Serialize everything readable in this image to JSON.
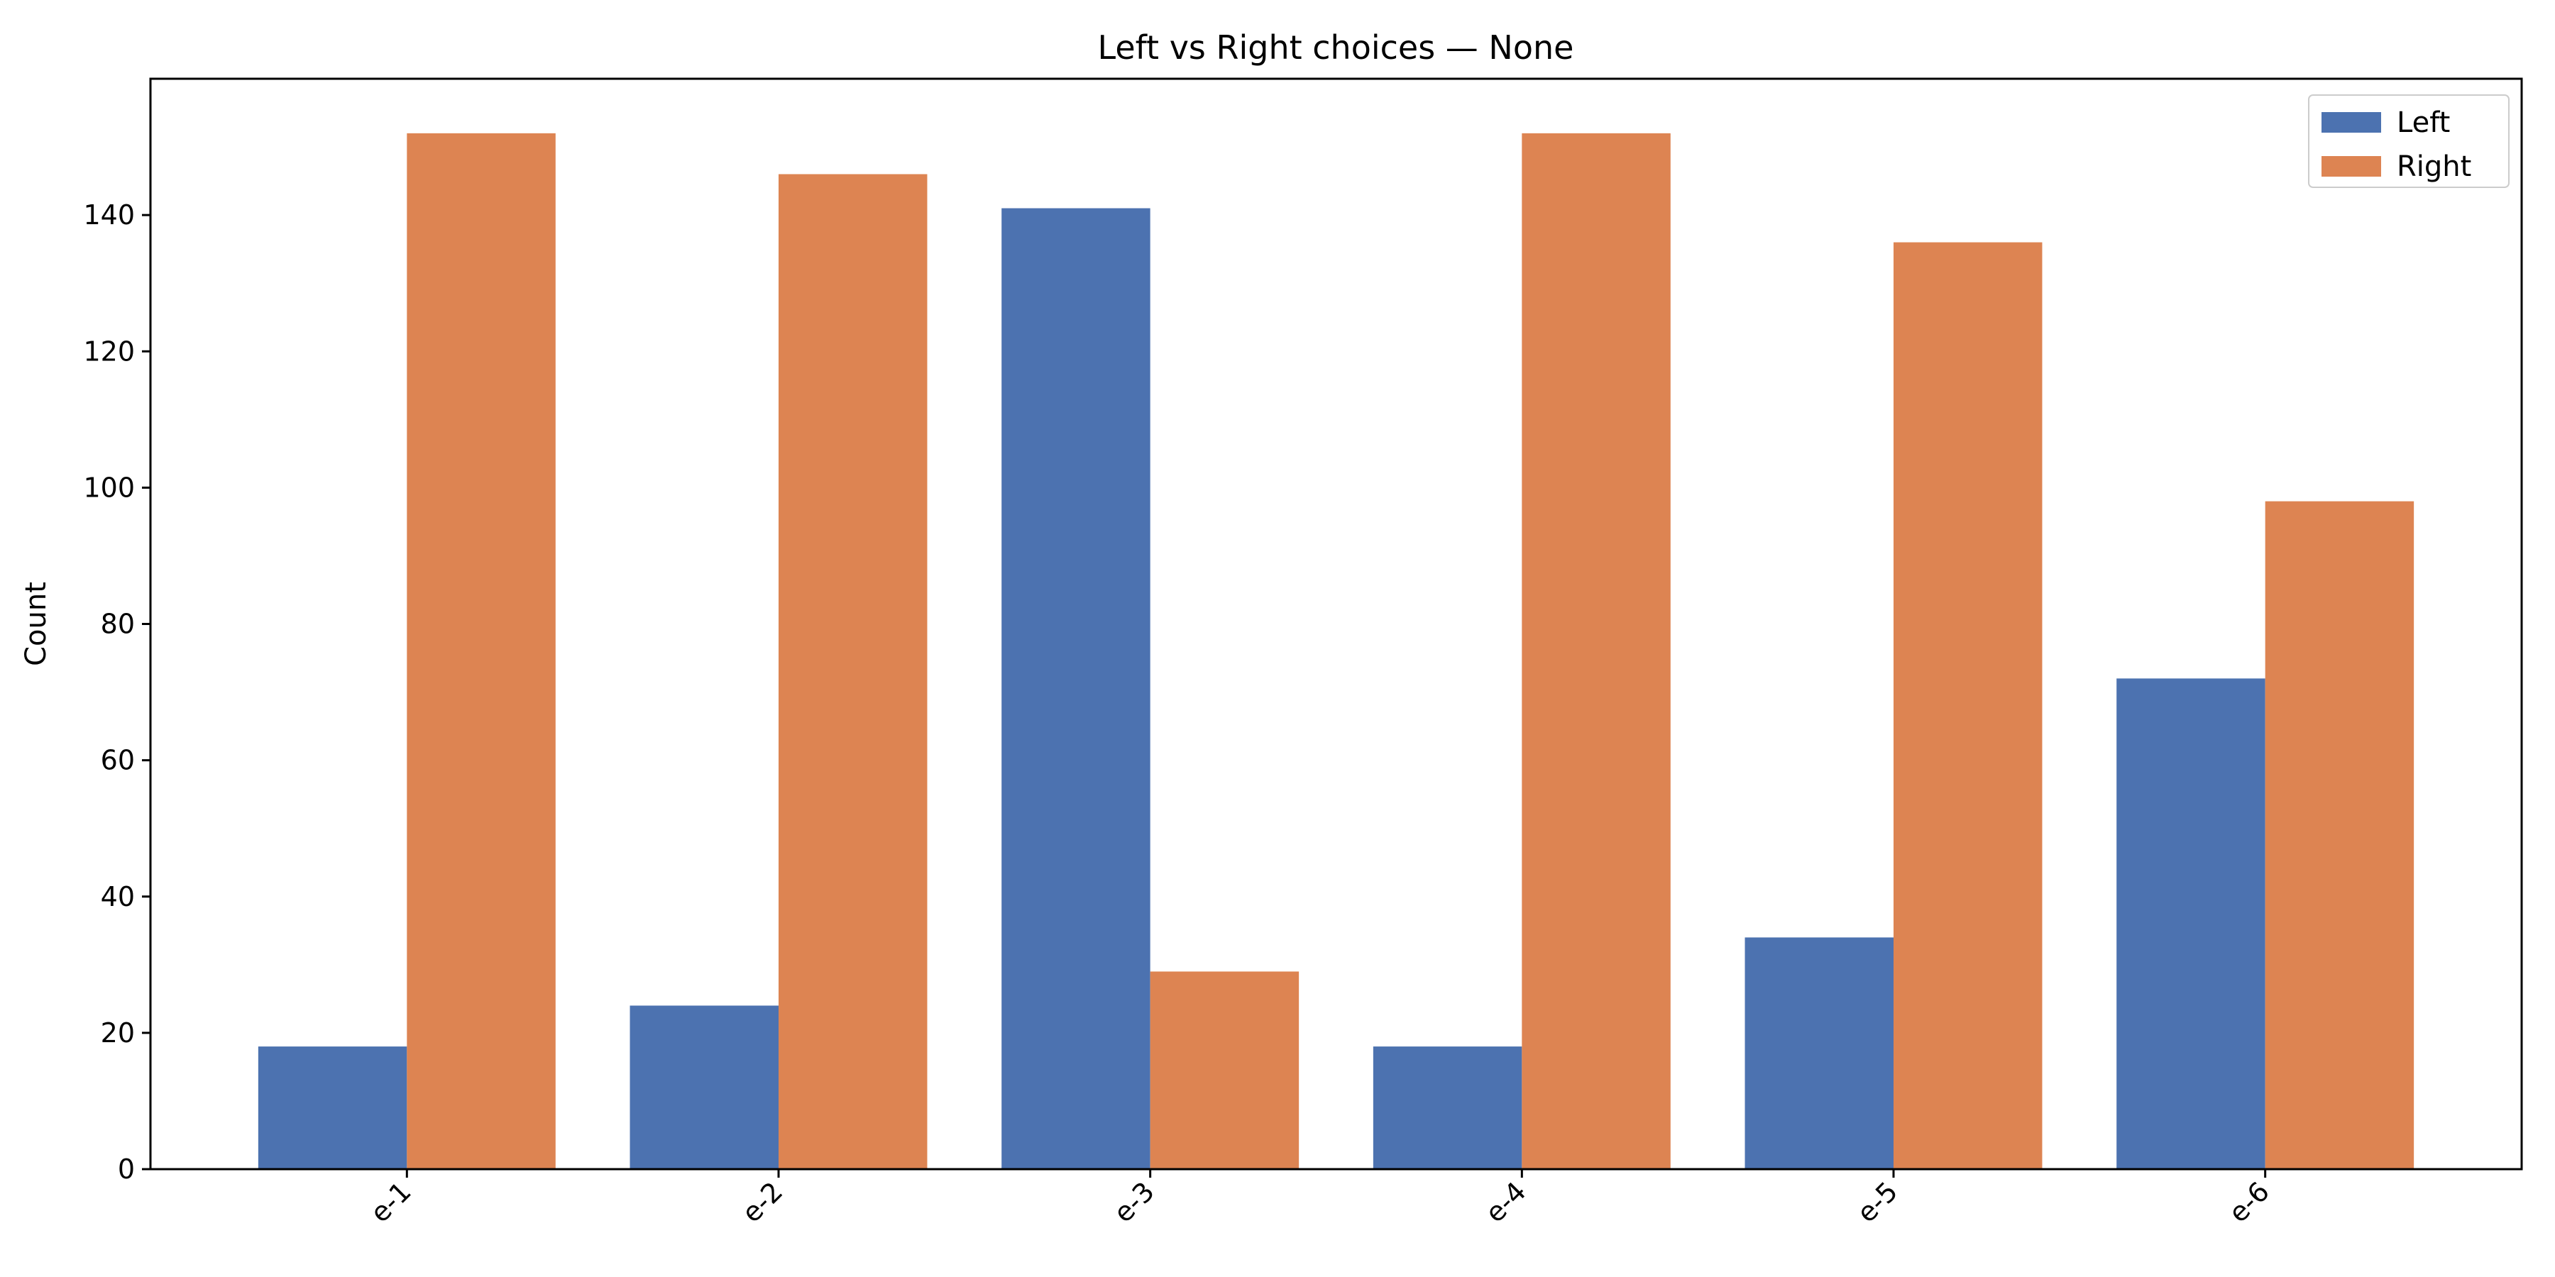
{
  "chart_data": {
    "type": "bar",
    "title": "Left vs Right choices — None",
    "xlabel": "",
    "ylabel": "Count",
    "categories": [
      "e-1",
      "e-2",
      "e-3",
      "e-4",
      "e-5",
      "e-6"
    ],
    "series": [
      {
        "name": "Left",
        "values": [
          18,
          24,
          141,
          18,
          34,
          72
        ],
        "color": "#4c72b0"
      },
      {
        "name": "Right",
        "values": [
          152,
          146,
          29,
          152,
          136,
          98
        ],
        "color": "#dd8452"
      }
    ],
    "ylim": [
      0,
      160
    ],
    "yticks": [
      0,
      20,
      40,
      60,
      80,
      100,
      120,
      140
    ],
    "grid": false,
    "legend_position": "top-right",
    "xtick_rotation": -45
  }
}
